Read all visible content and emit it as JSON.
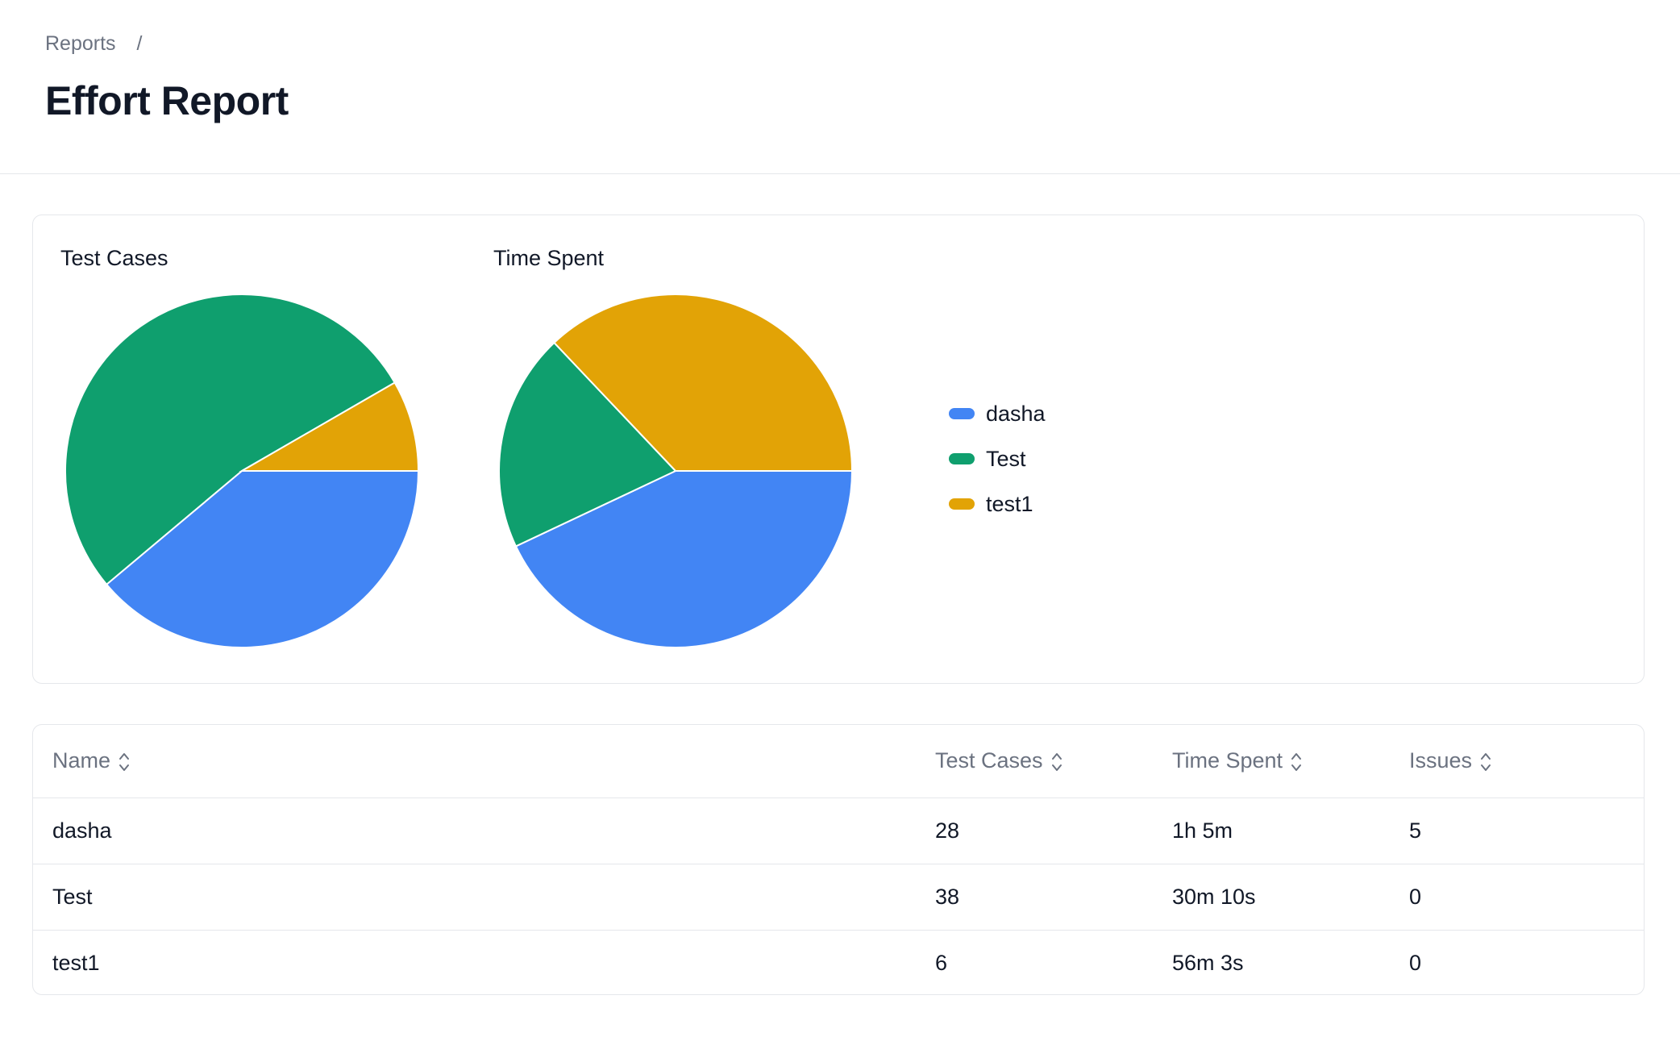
{
  "breadcrumb": {
    "parent": "Reports",
    "separator": "/"
  },
  "page": {
    "title": "Effort Report"
  },
  "colors": {
    "dasha": "#4285f4",
    "Test": "#0f9f6e",
    "test1": "#e2a306"
  },
  "chart_data": [
    {
      "type": "pie",
      "title": "Test Cases",
      "categories": [
        "dasha",
        "Test",
        "test1"
      ],
      "values": [
        28,
        38,
        6
      ],
      "legend": "right"
    },
    {
      "type": "pie",
      "title": "Time Spent",
      "categories": [
        "dasha",
        "Test",
        "test1"
      ],
      "values": [
        3900,
        1810,
        3363
      ],
      "legend": "right"
    }
  ],
  "legend": [
    {
      "label": "dasha",
      "color": "#4285f4"
    },
    {
      "label": "Test",
      "color": "#0f9f6e"
    },
    {
      "label": "test1",
      "color": "#e2a306"
    }
  ],
  "table": {
    "headers": [
      "Name",
      "Test Cases",
      "Time Spent",
      "Issues"
    ],
    "rows": [
      [
        "dasha",
        "28",
        "1h 5m",
        "5"
      ],
      [
        "Test",
        "38",
        "30m 10s",
        "0"
      ],
      [
        "test1",
        "6",
        "56m 3s",
        "0"
      ]
    ]
  },
  "icons": {
    "sort": "sort-updown-icon"
  }
}
